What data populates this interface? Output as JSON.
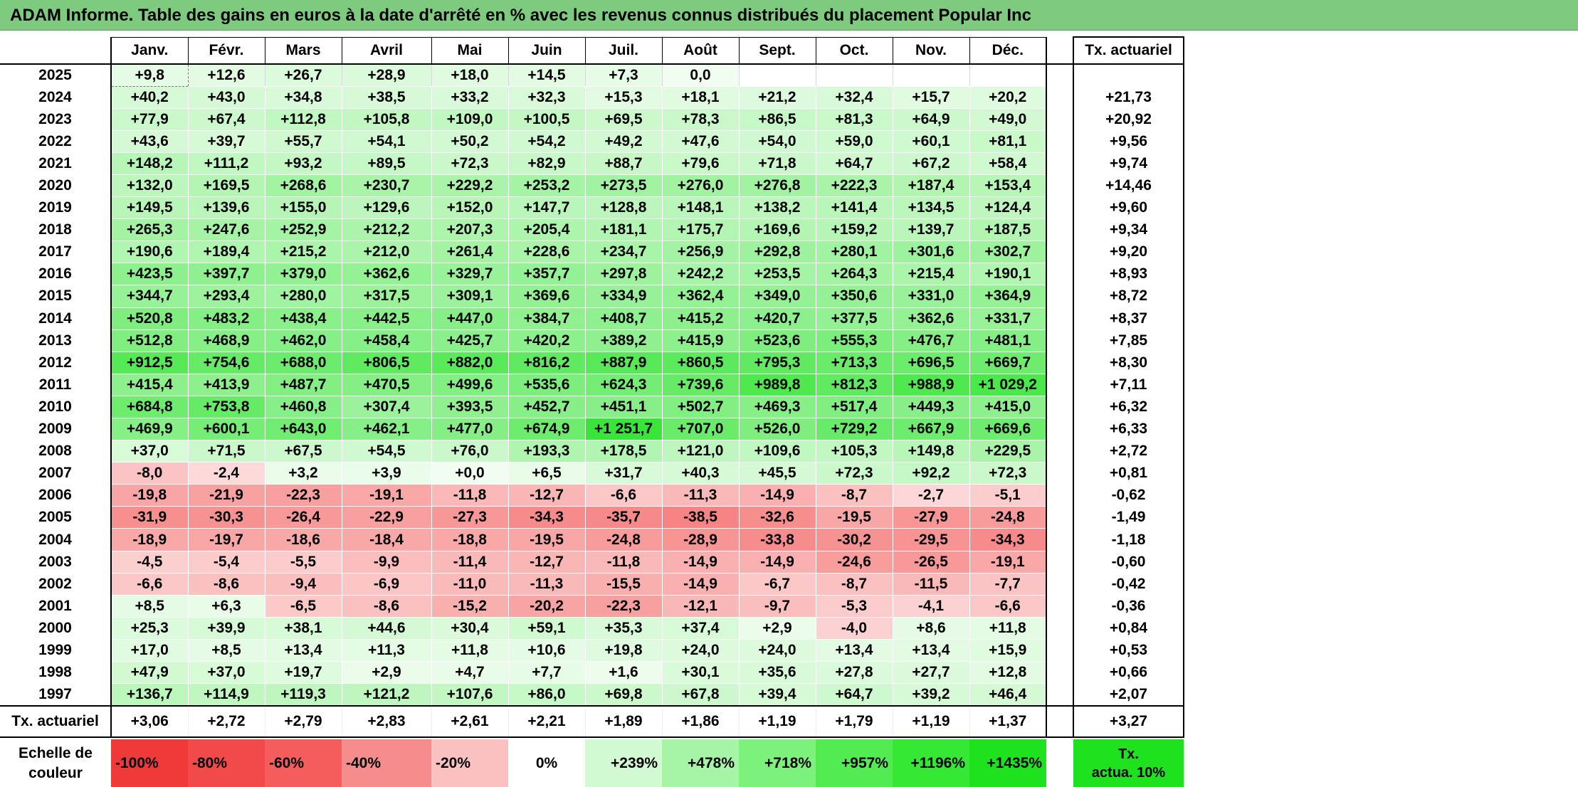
{
  "title": "ADAM Informe. Table des gains en euros à la date d'arrêté en % avec les revenus connus distribués du placement Popular Inc",
  "months": [
    "Janv.",
    "Févr.",
    "Mars",
    "Avril",
    "Mai",
    "Juin",
    "Juil.",
    "Août",
    "Sept.",
    "Oct.",
    "Nov.",
    "Déc."
  ],
  "tx_header": "Tx. actuariel",
  "rows": [
    {
      "year": "2025",
      "values": [
        "+9,8",
        "+12,6",
        "+26,7",
        "+28,9",
        "+18,0",
        "+14,5",
        "+7,3",
        "0,0",
        "",
        "",
        "",
        ""
      ],
      "tx": ""
    },
    {
      "year": "2024",
      "values": [
        "+40,2",
        "+43,0",
        "+34,8",
        "+38,5",
        "+33,2",
        "+32,3",
        "+15,3",
        "+18,1",
        "+21,2",
        "+32,4",
        "+15,7",
        "+20,2"
      ],
      "tx": "+21,73"
    },
    {
      "year": "2023",
      "values": [
        "+77,9",
        "+67,4",
        "+112,8",
        "+105,8",
        "+109,0",
        "+100,5",
        "+69,5",
        "+78,3",
        "+86,5",
        "+81,3",
        "+64,9",
        "+49,0"
      ],
      "tx": "+20,92"
    },
    {
      "year": "2022",
      "values": [
        "+43,6",
        "+39,7",
        "+55,7",
        "+54,1",
        "+50,2",
        "+54,2",
        "+49,2",
        "+47,6",
        "+54,0",
        "+59,0",
        "+60,1",
        "+81,1"
      ],
      "tx": "+9,56"
    },
    {
      "year": "2021",
      "values": [
        "+148,2",
        "+111,2",
        "+93,2",
        "+89,5",
        "+72,3",
        "+82,9",
        "+88,7",
        "+79,6",
        "+71,8",
        "+64,7",
        "+67,2",
        "+58,4"
      ],
      "tx": "+9,74"
    },
    {
      "year": "2020",
      "values": [
        "+132,0",
        "+169,5",
        "+268,6",
        "+230,7",
        "+229,2",
        "+253,2",
        "+273,5",
        "+276,0",
        "+276,8",
        "+222,3",
        "+187,4",
        "+153,4"
      ],
      "tx": "+14,46"
    },
    {
      "year": "2019",
      "values": [
        "+149,5",
        "+139,6",
        "+155,0",
        "+129,6",
        "+152,0",
        "+147,7",
        "+128,8",
        "+148,1",
        "+138,2",
        "+141,4",
        "+134,5",
        "+124,4"
      ],
      "tx": "+9,60"
    },
    {
      "year": "2018",
      "values": [
        "+265,3",
        "+247,6",
        "+252,9",
        "+212,2",
        "+207,3",
        "+205,4",
        "+181,1",
        "+175,7",
        "+169,6",
        "+159,2",
        "+139,7",
        "+187,5"
      ],
      "tx": "+9,34"
    },
    {
      "year": "2017",
      "values": [
        "+190,6",
        "+189,4",
        "+215,2",
        "+212,0",
        "+261,4",
        "+228,6",
        "+234,7",
        "+256,9",
        "+292,8",
        "+280,1",
        "+301,6",
        "+302,7"
      ],
      "tx": "+9,20"
    },
    {
      "year": "2016",
      "values": [
        "+423,5",
        "+397,7",
        "+379,0",
        "+362,6",
        "+329,7",
        "+357,7",
        "+297,8",
        "+242,2",
        "+253,5",
        "+264,3",
        "+215,4",
        "+190,1"
      ],
      "tx": "+8,93"
    },
    {
      "year": "2015",
      "values": [
        "+344,7",
        "+293,4",
        "+280,0",
        "+317,5",
        "+309,1",
        "+369,6",
        "+334,9",
        "+362,4",
        "+349,0",
        "+350,6",
        "+331,0",
        "+364,9"
      ],
      "tx": "+8,72"
    },
    {
      "year": "2014",
      "values": [
        "+520,8",
        "+483,2",
        "+438,4",
        "+442,5",
        "+447,0",
        "+384,7",
        "+408,7",
        "+415,2",
        "+420,7",
        "+377,5",
        "+362,6",
        "+331,7"
      ],
      "tx": "+8,37"
    },
    {
      "year": "2013",
      "values": [
        "+512,8",
        "+468,9",
        "+462,0",
        "+458,4",
        "+425,7",
        "+420,2",
        "+389,2",
        "+415,9",
        "+523,6",
        "+555,3",
        "+476,7",
        "+481,1"
      ],
      "tx": "+7,85"
    },
    {
      "year": "2012",
      "values": [
        "+912,5",
        "+754,6",
        "+688,0",
        "+806,5",
        "+882,0",
        "+816,2",
        "+887,9",
        "+860,5",
        "+795,3",
        "+713,3",
        "+696,5",
        "+669,7"
      ],
      "tx": "+8,30"
    },
    {
      "year": "2011",
      "values": [
        "+415,4",
        "+413,9",
        "+487,7",
        "+470,5",
        "+499,6",
        "+535,6",
        "+624,3",
        "+739,6",
        "+989,8",
        "+812,3",
        "+988,9",
        "+1 029,2"
      ],
      "tx": "+7,11"
    },
    {
      "year": "2010",
      "values": [
        "+684,8",
        "+753,8",
        "+460,8",
        "+307,4",
        "+393,5",
        "+452,7",
        "+451,1",
        "+502,7",
        "+469,3",
        "+517,4",
        "+449,3",
        "+415,0"
      ],
      "tx": "+6,32"
    },
    {
      "year": "2009",
      "values": [
        "+469,9",
        "+600,1",
        "+643,0",
        "+462,1",
        "+477,0",
        "+674,9",
        "+1 251,7",
        "+707,0",
        "+526,0",
        "+729,2",
        "+667,9",
        "+669,6"
      ],
      "tx": "+6,33"
    },
    {
      "year": "2008",
      "values": [
        "+37,0",
        "+71,5",
        "+67,5",
        "+54,5",
        "+76,0",
        "+193,3",
        "+178,5",
        "+121,0",
        "+109,6",
        "+105,3",
        "+149,8",
        "+229,5"
      ],
      "tx": "+2,72"
    },
    {
      "year": "2007",
      "values": [
        "-8,0",
        "-2,4",
        "+3,2",
        "+3,9",
        "+0,0",
        "+6,5",
        "+31,7",
        "+40,3",
        "+45,5",
        "+72,3",
        "+92,2",
        "+72,3"
      ],
      "tx": "+0,81"
    },
    {
      "year": "2006",
      "values": [
        "-19,8",
        "-21,9",
        "-22,3",
        "-19,1",
        "-11,8",
        "-12,7",
        "-6,6",
        "-11,3",
        "-14,9",
        "-8,7",
        "-2,7",
        "-5,1"
      ],
      "tx": "-0,62"
    },
    {
      "year": "2005",
      "values": [
        "-31,9",
        "-30,3",
        "-26,4",
        "-22,9",
        "-27,3",
        "-34,3",
        "-35,7",
        "-38,5",
        "-32,6",
        "-19,5",
        "-27,9",
        "-24,8"
      ],
      "tx": "-1,49"
    },
    {
      "year": "2004",
      "values": [
        "-18,9",
        "-19,7",
        "-18,6",
        "-18,4",
        "-18,8",
        "-19,5",
        "-24,8",
        "-28,9",
        "-33,8",
        "-30,2",
        "-29,5",
        "-34,3"
      ],
      "tx": "-1,18"
    },
    {
      "year": "2003",
      "values": [
        "-4,5",
        "-5,4",
        "-5,5",
        "-9,9",
        "-11,4",
        "-12,7",
        "-11,8",
        "-14,9",
        "-14,9",
        "-24,6",
        "-26,5",
        "-19,1"
      ],
      "tx": "-0,60"
    },
    {
      "year": "2002",
      "values": [
        "-6,6",
        "-8,6",
        "-9,4",
        "-6,9",
        "-11,0",
        "-11,3",
        "-15,5",
        "-14,9",
        "-6,7",
        "-8,7",
        "-11,5",
        "-7,7"
      ],
      "tx": "-0,42"
    },
    {
      "year": "2001",
      "values": [
        "+8,5",
        "+6,3",
        "-6,5",
        "-8,6",
        "-15,2",
        "-20,2",
        "-22,3",
        "-12,1",
        "-9,7",
        "-5,3",
        "-4,1",
        "-6,6"
      ],
      "tx": "-0,36"
    },
    {
      "year": "2000",
      "values": [
        "+25,3",
        "+39,9",
        "+38,1",
        "+44,6",
        "+30,4",
        "+59,1",
        "+35,3",
        "+37,4",
        "+2,9",
        "-4,0",
        "+8,6",
        "+11,8"
      ],
      "tx": "+0,84"
    },
    {
      "year": "1999",
      "values": [
        "+17,0",
        "+8,5",
        "+13,4",
        "+11,3",
        "+11,8",
        "+10,6",
        "+19,8",
        "+24,0",
        "+24,0",
        "+13,4",
        "+13,4",
        "+15,9"
      ],
      "tx": "+0,53"
    },
    {
      "year": "1998",
      "values": [
        "+47,9",
        "+37,0",
        "+19,7",
        "+2,9",
        "+4,7",
        "+7,7",
        "+1,6",
        "+30,1",
        "+35,6",
        "+27,8",
        "+27,7",
        "+12,8"
      ],
      "tx": "+0,66"
    },
    {
      "year": "1997",
      "values": [
        "+136,7",
        "+114,9",
        "+119,3",
        "+121,2",
        "+107,6",
        "+86,0",
        "+69,8",
        "+67,8",
        "+39,4",
        "+64,7",
        "+39,2",
        "+46,4"
      ],
      "tx": "+2,07"
    }
  ],
  "footer": {
    "label": "Tx. actuariel",
    "values": [
      "+3,06",
      "+2,72",
      "+2,79",
      "+2,83",
      "+2,61",
      "+2,21",
      "+1,89",
      "+1,86",
      "+1,19",
      "+1,79",
      "+1,19",
      "+1,37"
    ],
    "tx": "+3,27"
  },
  "scale": {
    "label_line1": "Echelle de",
    "label_line2": "couleur",
    "steps": [
      {
        "text": "-100%",
        "color": "#f03a3a"
      },
      {
        "text": "-80%",
        "color": "#f24a4a"
      },
      {
        "text": "-60%",
        "color": "#f55d5d"
      },
      {
        "text": "-40%",
        "color": "#f78c8c"
      },
      {
        "text": "-20%",
        "color": "#fbc0c0"
      },
      {
        "text": "0%",
        "color": "#ffffff"
      },
      {
        "text": "+239%",
        "color": "#d2fad2"
      },
      {
        "text": "+478%",
        "color": "#a6f5a6"
      },
      {
        "text": "+718%",
        "color": "#7cf17c"
      },
      {
        "text": "+957%",
        "color": "#52ec52"
      },
      {
        "text": "+1196%",
        "color": "#34e834"
      },
      {
        "text": "+1435%",
        "color": "#1fe21f"
      }
    ],
    "tx_line1": "Tx.",
    "tx_line2": "actua. 10%",
    "tx_color": "#1fe21f"
  },
  "colors": {
    "title_bg": "#7ecb80",
    "positive_max": "#1fe21f",
    "negative_max": "#f03a3a",
    "neutral": "#ffffff"
  }
}
